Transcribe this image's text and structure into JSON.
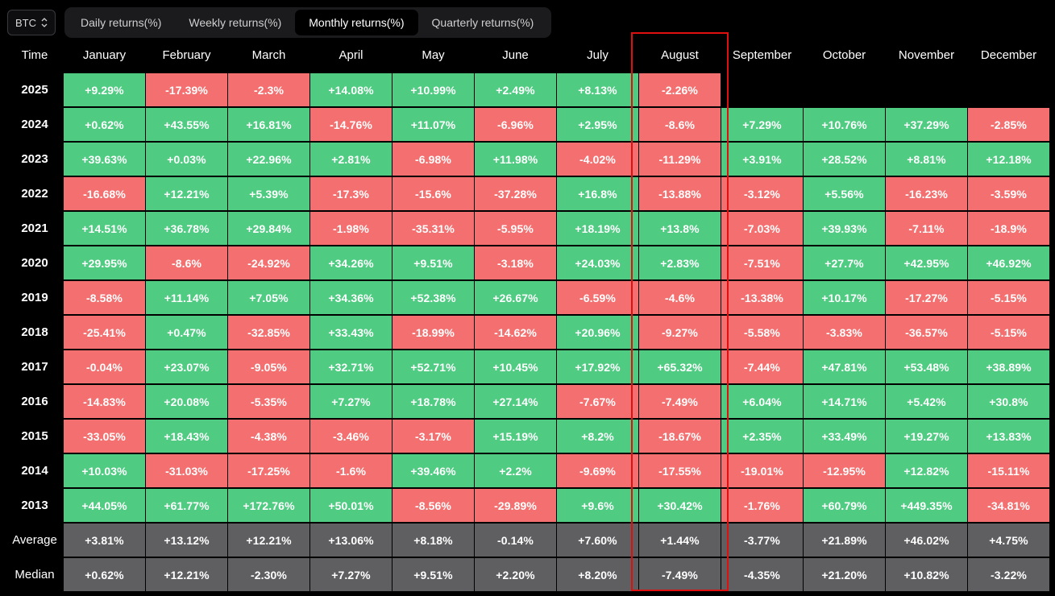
{
  "asset_selector": {
    "value": "BTC"
  },
  "tabs": [
    {
      "label": "Daily returns(%)",
      "active": false
    },
    {
      "label": "Weekly returns(%)",
      "active": false
    },
    {
      "label": "Monthly returns(%)",
      "active": true
    },
    {
      "label": "Quarterly returns(%)",
      "active": false
    }
  ],
  "table": {
    "corner_label": "Time",
    "months": [
      "January",
      "February",
      "March",
      "April",
      "May",
      "June",
      "July",
      "August",
      "September",
      "October",
      "November",
      "December"
    ],
    "rows": [
      {
        "label": "2025",
        "type": "year",
        "values": [
          "+9.29%",
          "-17.39%",
          "-2.3%",
          "+14.08%",
          "+10.99%",
          "+2.49%",
          "+8.13%",
          "-2.26%",
          "",
          "",
          "",
          ""
        ]
      },
      {
        "label": "2024",
        "type": "year",
        "values": [
          "+0.62%",
          "+43.55%",
          "+16.81%",
          "-14.76%",
          "+11.07%",
          "-6.96%",
          "+2.95%",
          "-8.6%",
          "+7.29%",
          "+10.76%",
          "+37.29%",
          "-2.85%"
        ]
      },
      {
        "label": "2023",
        "type": "year",
        "values": [
          "+39.63%",
          "+0.03%",
          "+22.96%",
          "+2.81%",
          "-6.98%",
          "+11.98%",
          "-4.02%",
          "-11.29%",
          "+3.91%",
          "+28.52%",
          "+8.81%",
          "+12.18%"
        ]
      },
      {
        "label": "2022",
        "type": "year",
        "values": [
          "-16.68%",
          "+12.21%",
          "+5.39%",
          "-17.3%",
          "-15.6%",
          "-37.28%",
          "+16.8%",
          "-13.88%",
          "-3.12%",
          "+5.56%",
          "-16.23%",
          "-3.59%"
        ]
      },
      {
        "label": "2021",
        "type": "year",
        "values": [
          "+14.51%",
          "+36.78%",
          "+29.84%",
          "-1.98%",
          "-35.31%",
          "-5.95%",
          "+18.19%",
          "+13.8%",
          "-7.03%",
          "+39.93%",
          "-7.11%",
          "-18.9%"
        ]
      },
      {
        "label": "2020",
        "type": "year",
        "values": [
          "+29.95%",
          "-8.6%",
          "-24.92%",
          "+34.26%",
          "+9.51%",
          "-3.18%",
          "+24.03%",
          "+2.83%",
          "-7.51%",
          "+27.7%",
          "+42.95%",
          "+46.92%"
        ]
      },
      {
        "label": "2019",
        "type": "year",
        "values": [
          "-8.58%",
          "+11.14%",
          "+7.05%",
          "+34.36%",
          "+52.38%",
          "+26.67%",
          "-6.59%",
          "-4.6%",
          "-13.38%",
          "+10.17%",
          "-17.27%",
          "-5.15%"
        ]
      },
      {
        "label": "2018",
        "type": "year",
        "values": [
          "-25.41%",
          "+0.47%",
          "-32.85%",
          "+33.43%",
          "-18.99%",
          "-14.62%",
          "+20.96%",
          "-9.27%",
          "-5.58%",
          "-3.83%",
          "-36.57%",
          "-5.15%"
        ]
      },
      {
        "label": "2017",
        "type": "year",
        "values": [
          "-0.04%",
          "+23.07%",
          "-9.05%",
          "+32.71%",
          "+52.71%",
          "+10.45%",
          "+17.92%",
          "+65.32%",
          "-7.44%",
          "+47.81%",
          "+53.48%",
          "+38.89%"
        ]
      },
      {
        "label": "2016",
        "type": "year",
        "values": [
          "-14.83%",
          "+20.08%",
          "-5.35%",
          "+7.27%",
          "+18.78%",
          "+27.14%",
          "-7.67%",
          "-7.49%",
          "+6.04%",
          "+14.71%",
          "+5.42%",
          "+30.8%"
        ]
      },
      {
        "label": "2015",
        "type": "year",
        "values": [
          "-33.05%",
          "+18.43%",
          "-4.38%",
          "-3.46%",
          "-3.17%",
          "+15.19%",
          "+8.2%",
          "-18.67%",
          "+2.35%",
          "+33.49%",
          "+19.27%",
          "+13.83%"
        ]
      },
      {
        "label": "2014",
        "type": "year",
        "values": [
          "+10.03%",
          "-31.03%",
          "-17.25%",
          "-1.6%",
          "+39.46%",
          "+2.2%",
          "-9.69%",
          "-17.55%",
          "-19.01%",
          "-12.95%",
          "+12.82%",
          "-15.11%"
        ]
      },
      {
        "label": "2013",
        "type": "year",
        "values": [
          "+44.05%",
          "+61.77%",
          "+172.76%",
          "+50.01%",
          "-8.56%",
          "-29.89%",
          "+9.6%",
          "+30.42%",
          "-1.76%",
          "+60.79%",
          "+449.35%",
          "-34.81%"
        ]
      },
      {
        "label": "Average",
        "type": "stat",
        "values": [
          "+3.81%",
          "+13.12%",
          "+12.21%",
          "+13.06%",
          "+8.18%",
          "-0.14%",
          "+7.60%",
          "+1.44%",
          "-3.77%",
          "+21.89%",
          "+46.02%",
          "+4.75%"
        ]
      },
      {
        "label": "Median",
        "type": "stat",
        "values": [
          "+0.62%",
          "+12.21%",
          "-2.30%",
          "+7.27%",
          "+9.51%",
          "+2.20%",
          "+8.20%",
          "-7.49%",
          "-4.35%",
          "+21.20%",
          "+10.82%",
          "-3.22%"
        ]
      }
    ]
  },
  "highlighted_month": "August",
  "colors": {
    "positive": "#4fcb82",
    "negative": "#f46f6f",
    "stat": "#5f5f62",
    "highlight_border": "#e01010",
    "background": "#000000"
  }
}
